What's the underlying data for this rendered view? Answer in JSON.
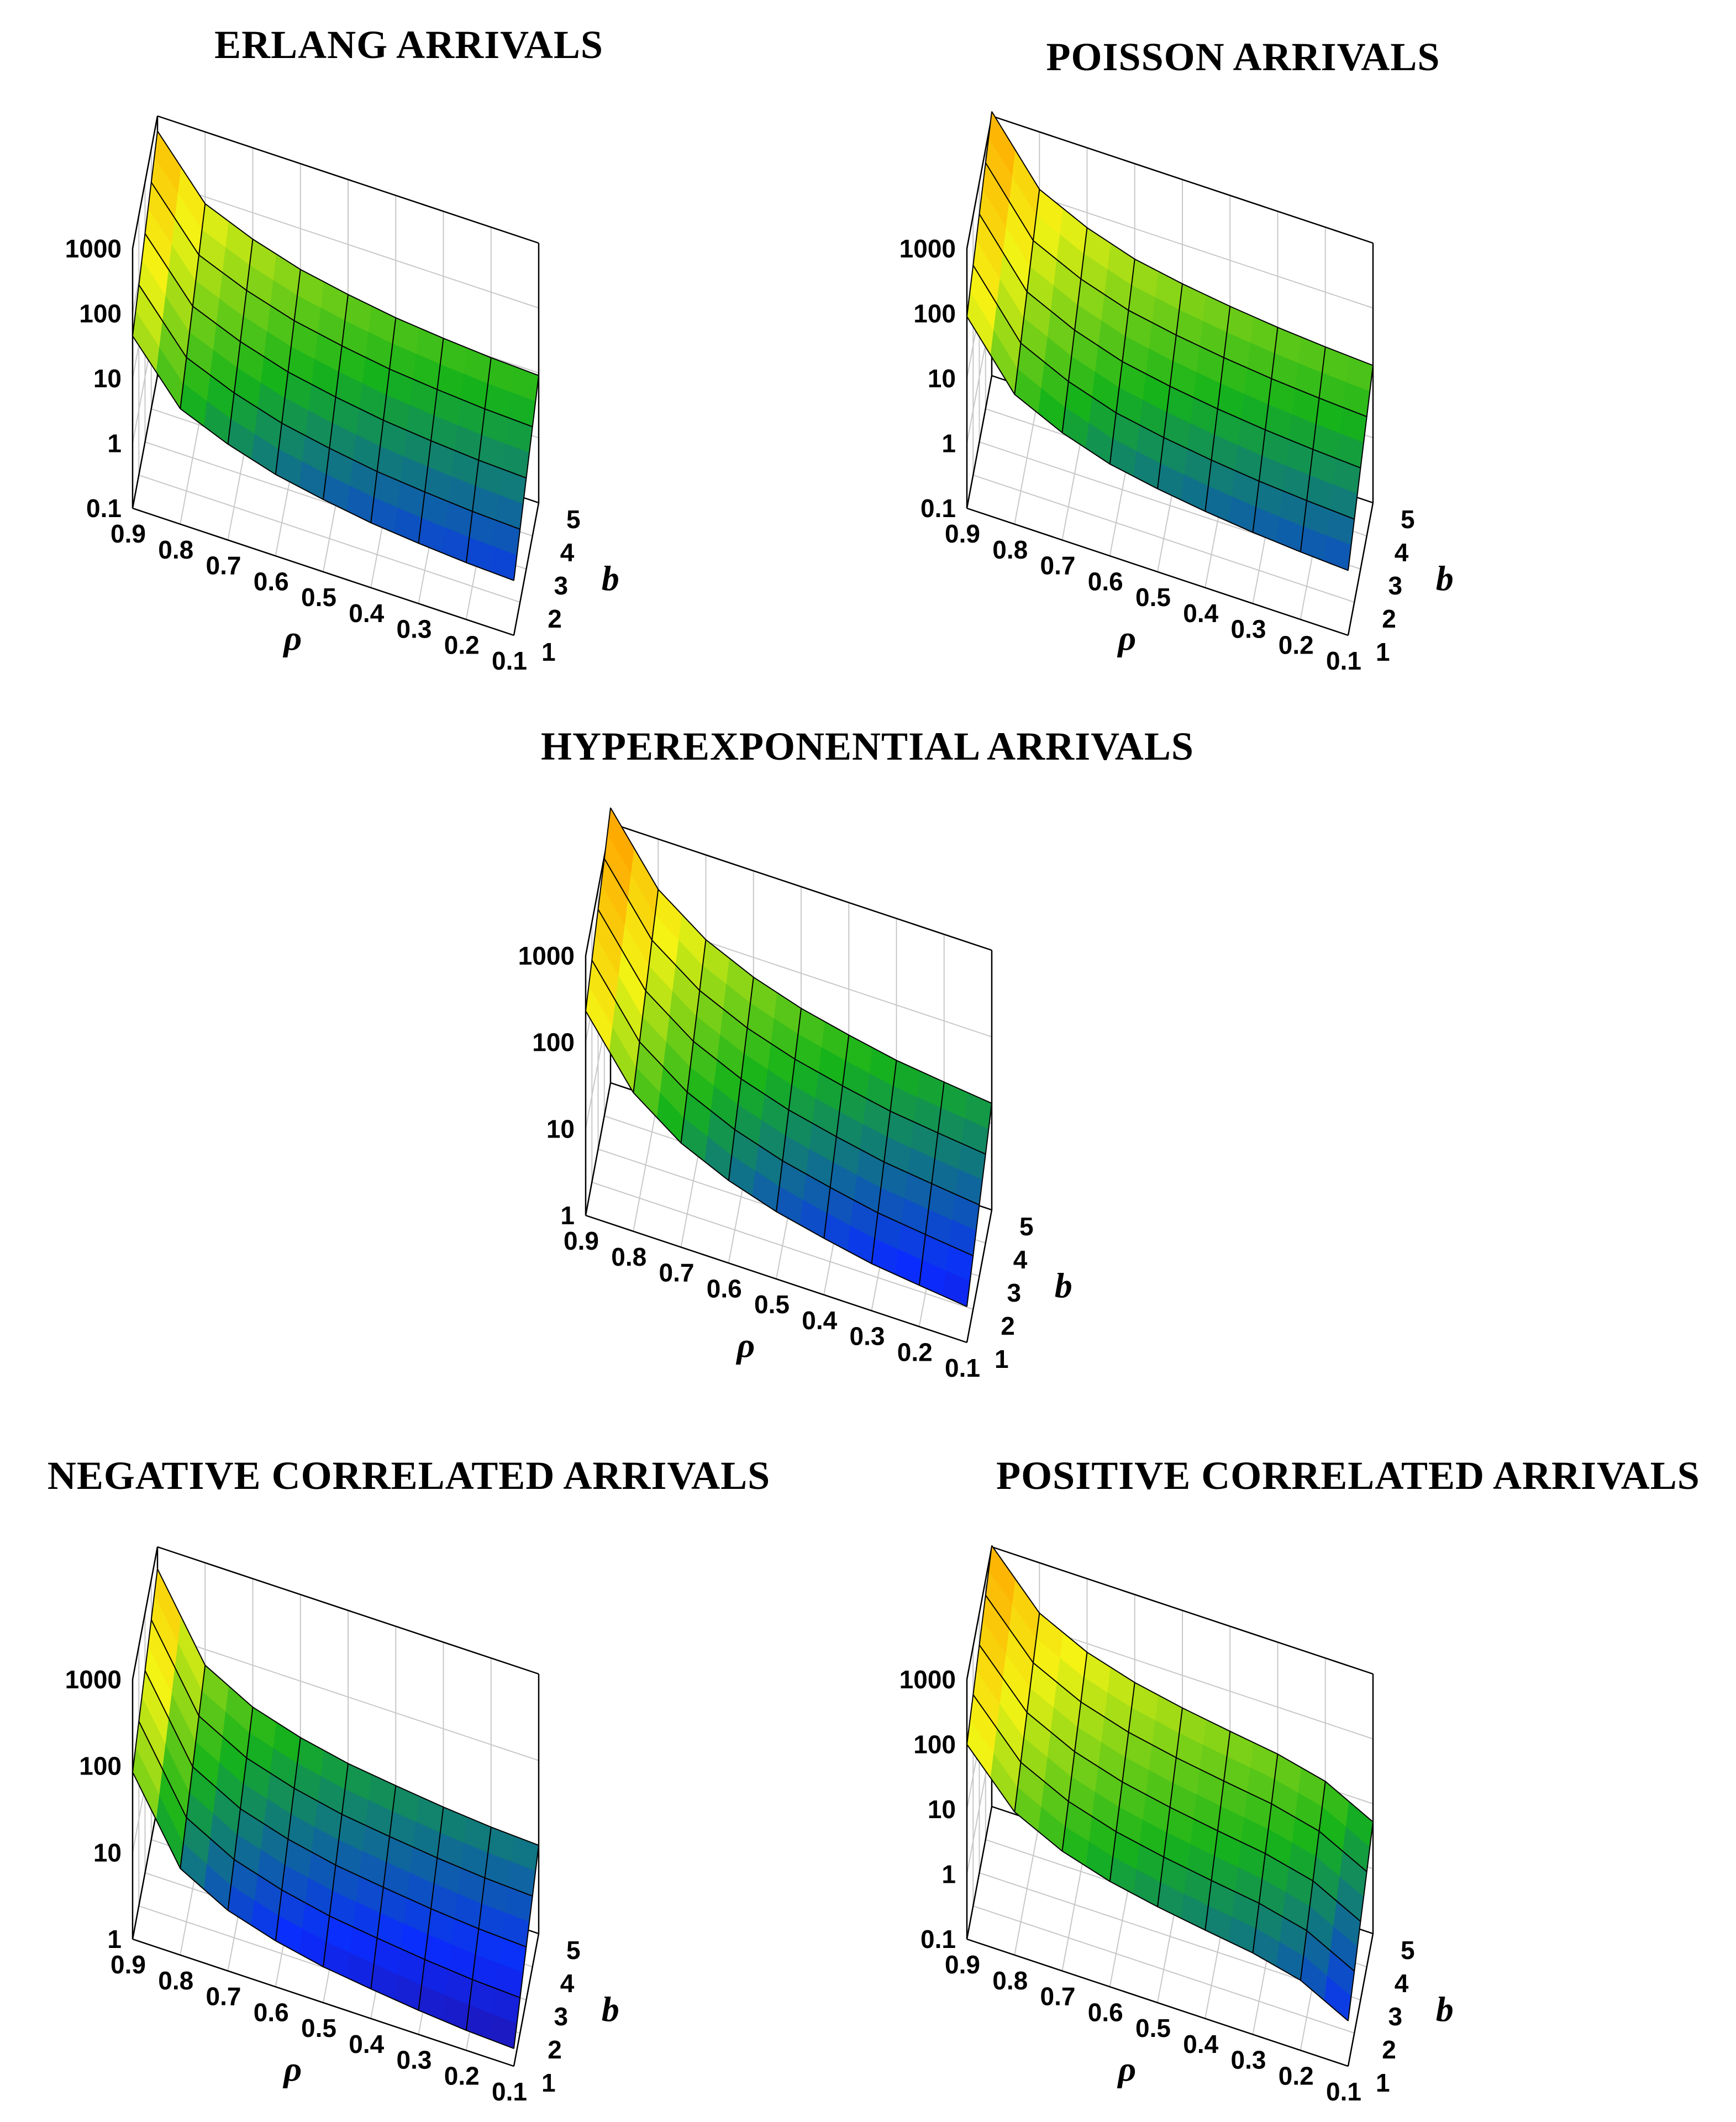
{
  "chart_data": [
    {
      "type": "surface3d",
      "title": "ERLANG ARRIVALS",
      "xlabel": "ρ",
      "ylabel": "b",
      "zscale": "log",
      "x_ticks": [
        "0.9",
        "0.8",
        "0.7",
        "0.6",
        "0.5",
        "0.4",
        "0.3",
        "0.2",
        "0.1"
      ],
      "y_ticks": [
        "1",
        "2",
        "3",
        "4",
        "5"
      ],
      "z_ticks": [
        "0.1",
        "1",
        "10",
        "100",
        "1000"
      ],
      "zlim": [
        0.1,
        1000
      ],
      "rho": [
        0.9,
        0.8,
        0.7,
        0.6,
        0.5,
        0.4,
        0.3,
        0.2,
        0.1
      ],
      "b": [
        1,
        2,
        3,
        4,
        5
      ],
      "z_by_rho": [
        45,
        6,
        3,
        1.8,
        1.3,
        1.0,
        0.85,
        0.75,
        0.7
      ],
      "b_growth": 1.9
    },
    {
      "type": "surface3d",
      "title": "POISSON ARRIVALS",
      "xlabel": "ρ",
      "ylabel": "b",
      "zscale": "log",
      "x_ticks": [
        "0.9",
        "0.8",
        "0.7",
        "0.6",
        "0.5",
        "0.4",
        "0.3",
        "0.2",
        "0.1"
      ],
      "y_ticks": [
        "1",
        "2",
        "3",
        "4",
        "5"
      ],
      "z_ticks": [
        "0.1",
        "1",
        "10",
        "100",
        "1000"
      ],
      "zlim": [
        0.1,
        1000
      ],
      "rho": [
        0.9,
        0.8,
        0.7,
        0.6,
        0.5,
        0.4,
        0.3,
        0.2,
        0.1
      ],
      "b": [
        1,
        2,
        3,
        4,
        5
      ],
      "z_by_rho": [
        90,
        10,
        4.5,
        2.6,
        1.9,
        1.5,
        1.25,
        1.1,
        1.0
      ],
      "b_growth": 1.9
    },
    {
      "type": "surface3d",
      "title": "HYPEREXPONENTIAL ARRIVALS",
      "xlabel": "ρ",
      "ylabel": "b",
      "zscale": "log",
      "x_ticks": [
        "0.9",
        "0.8",
        "0.7",
        "0.6",
        "0.5",
        "0.4",
        "0.3",
        "0.2",
        "0.1"
      ],
      "y_ticks": [
        "1",
        "2",
        "3",
        "4",
        "5"
      ],
      "z_ticks": [
        "1",
        "10",
        "100",
        "1000"
      ],
      "zlim": [
        1,
        1000
      ],
      "rho": [
        0.9,
        0.8,
        0.7,
        0.6,
        0.5,
        0.4,
        0.3,
        0.2,
        0.1
      ],
      "b": [
        1,
        2,
        3,
        4,
        5
      ],
      "z_by_rho": [
        230,
        40,
        16,
        9,
        6,
        4.5,
        3.5,
        3,
        2.6
      ],
      "b_growth": 1.6
    },
    {
      "type": "surface3d",
      "title": "NEGATIVE CORRELATED ARRIVALS",
      "xlabel": "ρ",
      "ylabel": "b",
      "zscale": "log",
      "x_ticks": [
        "0.9",
        "0.8",
        "0.7",
        "0.6",
        "0.5",
        "0.4",
        "0.3",
        "0.2",
        "0.1"
      ],
      "y_ticks": [
        "1",
        "2",
        "3",
        "4",
        "5"
      ],
      "z_ticks": [
        "1",
        "10",
        "100",
        "1000"
      ],
      "zlim": [
        1,
        1000
      ],
      "rho": [
        0.9,
        0.8,
        0.7,
        0.6,
        0.5,
        0.4,
        0.3,
        0.2,
        0.1
      ],
      "b": [
        1,
        2,
        3,
        4,
        5
      ],
      "z_by_rho": [
        85,
        10,
        5,
        3.4,
        2.6,
        2.2,
        1.9,
        1.7,
        1.6
      ],
      "b_growth": 1.6
    },
    {
      "type": "surface3d",
      "title": "POSITIVE CORRELATED ARRIVALS",
      "xlabel": "ρ",
      "ylabel": "b",
      "zscale": "log",
      "x_ticks": [
        "0.9",
        "0.8",
        "0.7",
        "0.6",
        "0.5",
        "0.4",
        "0.3",
        "0.2",
        "0.1"
      ],
      "y_ticks": [
        "1",
        "2",
        "3",
        "4",
        "5"
      ],
      "z_ticks": [
        "0.1",
        "1",
        "10",
        "100",
        "1000"
      ],
      "zlim": [
        0.1,
        1000
      ],
      "rho": [
        0.9,
        0.8,
        0.7,
        0.6,
        0.5,
        0.4,
        0.3,
        0.2,
        0.1
      ],
      "b": [
        1,
        2,
        3,
        4,
        5
      ],
      "z_by_rho": [
        100,
        16,
        7,
        4.2,
        3,
        2.3,
        1.8,
        1.2,
        0.5
      ],
      "b_growth": 1.8
    }
  ],
  "colors": {
    "surface_low": "#2b0a8a",
    "surface_mid_blue": "#0a2cff",
    "surface_green": "#16b31a",
    "surface_yellow": "#f4f414",
    "surface_orange": "#ffa500",
    "grid": "#c8c8c8",
    "axis": "#000000"
  }
}
